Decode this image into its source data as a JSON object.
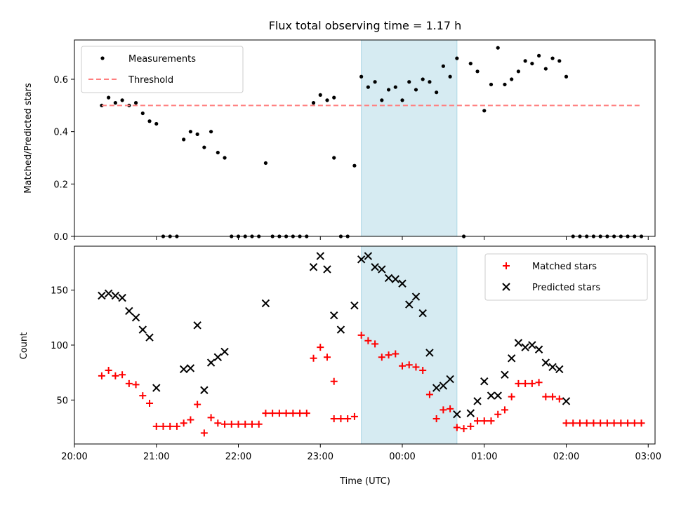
{
  "chart_data": [
    {
      "type": "scatter",
      "title": "Flux total observing time = 1.17 h",
      "xlabel": "",
      "ylabel": "Matched/Predicted stars",
      "xlim": [
        "20:00",
        "03:05"
      ],
      "ylim": [
        0,
        0.75
      ],
      "yticks": [
        "0.0",
        "0.2",
        "0.4",
        "0.6"
      ],
      "shaded_span": [
        "23:30",
        "00:40"
      ],
      "legend_position": "upper left",
      "series": [
        {
          "name": "Measurements",
          "marker": "dot",
          "color": "#000000",
          "points": [
            [
              "20:20",
              0.5
            ],
            [
              "20:25",
              0.53
            ],
            [
              "20:30",
              0.51
            ],
            [
              "20:35",
              0.52
            ],
            [
              "20:40",
              0.5
            ],
            [
              "20:45",
              0.51
            ],
            [
              "20:50",
              0.47
            ],
            [
              "20:55",
              0.44
            ],
            [
              "21:00",
              0.43
            ],
            [
              "21:05",
              0.0
            ],
            [
              "21:10",
              0.0
            ],
            [
              "21:15",
              0.0
            ],
            [
              "21:20",
              0.37
            ],
            [
              "21:25",
              0.4
            ],
            [
              "21:30",
              0.39
            ],
            [
              "21:35",
              0.34
            ],
            [
              "21:40",
              0.4
            ],
            [
              "21:45",
              0.32
            ],
            [
              "21:50",
              0.3
            ],
            [
              "21:55",
              0.0
            ],
            [
              "22:00",
              0.0
            ],
            [
              "22:05",
              0.0
            ],
            [
              "22:10",
              0.0
            ],
            [
              "22:15",
              0.0
            ],
            [
              "22:20",
              0.28
            ],
            [
              "22:25",
              0.0
            ],
            [
              "22:30",
              0.0
            ],
            [
              "22:35",
              0.0
            ],
            [
              "22:40",
              0.0
            ],
            [
              "22:45",
              0.0
            ],
            [
              "22:50",
              0.0
            ],
            [
              "22:55",
              0.51
            ],
            [
              "23:00",
              0.54
            ],
            [
              "23:05",
              0.52
            ],
            [
              "23:10",
              0.53
            ],
            [
              "23:10",
              0.3
            ],
            [
              "23:15",
              0.0
            ],
            [
              "23:20",
              0.0
            ],
            [
              "23:25",
              0.27
            ],
            [
              "23:30",
              0.61
            ],
            [
              "23:35",
              0.57
            ],
            [
              "23:40",
              0.59
            ],
            [
              "23:45",
              0.52
            ],
            [
              "23:50",
              0.56
            ],
            [
              "23:55",
              0.57
            ],
            [
              "00:00",
              0.52
            ],
            [
              "00:05",
              0.59
            ],
            [
              "00:10",
              0.56
            ],
            [
              "00:15",
              0.6
            ],
            [
              "00:20",
              0.59
            ],
            [
              "00:25",
              0.55
            ],
            [
              "00:30",
              0.65
            ],
            [
              "00:35",
              0.61
            ],
            [
              "00:40",
              0.68
            ],
            [
              "00:45",
              0.0
            ],
            [
              "00:50",
              0.66
            ],
            [
              "00:55",
              0.63
            ],
            [
              "01:00",
              0.48
            ],
            [
              "01:05",
              0.58
            ],
            [
              "01:10",
              0.72
            ],
            [
              "01:15",
              0.58
            ],
            [
              "01:20",
              0.6
            ],
            [
              "01:25",
              0.63
            ],
            [
              "01:30",
              0.67
            ],
            [
              "01:35",
              0.66
            ],
            [
              "01:40",
              0.69
            ],
            [
              "01:45",
              0.64
            ],
            [
              "01:50",
              0.68
            ],
            [
              "01:55",
              0.67
            ],
            [
              "02:00",
              0.61
            ],
            [
              "02:05",
              0.0
            ],
            [
              "02:10",
              0.0
            ],
            [
              "02:15",
              0.0
            ],
            [
              "02:20",
              0.0
            ],
            [
              "02:25",
              0.0
            ],
            [
              "02:30",
              0.0
            ],
            [
              "02:35",
              0.0
            ],
            [
              "02:40",
              0.0
            ],
            [
              "02:45",
              0.0
            ],
            [
              "02:50",
              0.0
            ],
            [
              "02:55",
              0.0
            ]
          ]
        },
        {
          "name": "Threshold",
          "marker": "dashed-line",
          "color": "#ff7f7f",
          "points": [
            [
              "20:20",
              0.5
            ],
            [
              "02:55",
              0.5
            ]
          ]
        }
      ]
    },
    {
      "type": "scatter",
      "title": "",
      "xlabel": "Time (UTC)",
      "ylabel": "Count",
      "xlim": [
        "20:00",
        "03:05"
      ],
      "ylim": [
        10,
        190
      ],
      "xticks": [
        "20:00",
        "21:00",
        "22:00",
        "23:00",
        "00:00",
        "01:00",
        "02:00",
        "03:00"
      ],
      "yticks": [
        "50",
        "100",
        "150"
      ],
      "shaded_span": [
        "23:30",
        "00:40"
      ],
      "legend_position": "upper right",
      "series": [
        {
          "name": "Matched stars",
          "marker": "plus",
          "color": "#ff0000",
          "points": [
            [
              "20:20",
              72
            ],
            [
              "20:25",
              77
            ],
            [
              "20:30",
              72
            ],
            [
              "20:35",
              73
            ],
            [
              "20:40",
              65
            ],
            [
              "20:45",
              64
            ],
            [
              "20:50",
              54
            ],
            [
              "20:55",
              47
            ],
            [
              "21:00",
              26
            ],
            [
              "21:05",
              26
            ],
            [
              "21:10",
              26
            ],
            [
              "21:15",
              26
            ],
            [
              "21:20",
              29
            ],
            [
              "21:25",
              32
            ],
            [
              "21:30",
              46
            ],
            [
              "21:35",
              20
            ],
            [
              "21:40",
              34
            ],
            [
              "21:45",
              29
            ],
            [
              "21:50",
              28
            ],
            [
              "21:55",
              28
            ],
            [
              "22:00",
              28
            ],
            [
              "22:05",
              28
            ],
            [
              "22:10",
              28
            ],
            [
              "22:15",
              28
            ],
            [
              "22:20",
              38
            ],
            [
              "22:25",
              38
            ],
            [
              "22:30",
              38
            ],
            [
              "22:35",
              38
            ],
            [
              "22:40",
              38
            ],
            [
              "22:45",
              38
            ],
            [
              "22:50",
              38
            ],
            [
              "22:55",
              88
            ],
            [
              "23:00",
              98
            ],
            [
              "23:05",
              89
            ],
            [
              "23:10",
              67
            ],
            [
              "23:10",
              33
            ],
            [
              "23:15",
              33
            ],
            [
              "23:20",
              33
            ],
            [
              "23:25",
              35
            ],
            [
              "23:30",
              109
            ],
            [
              "23:35",
              104
            ],
            [
              "23:40",
              101
            ],
            [
              "23:45",
              89
            ],
            [
              "23:50",
              91
            ],
            [
              "23:55",
              92
            ],
            [
              "00:00",
              81
            ],
            [
              "00:05",
              82
            ],
            [
              "00:10",
              80
            ],
            [
              "00:15",
              77
            ],
            [
              "00:20",
              55
            ],
            [
              "00:25",
              33
            ],
            [
              "00:30",
              41
            ],
            [
              "00:35",
              42
            ],
            [
              "00:40",
              25
            ],
            [
              "00:45",
              24
            ],
            [
              "00:50",
              26
            ],
            [
              "00:55",
              31
            ],
            [
              "01:00",
              31
            ],
            [
              "01:05",
              31
            ],
            [
              "01:10",
              37
            ],
            [
              "01:15",
              41
            ],
            [
              "01:20",
              53
            ],
            [
              "01:25",
              65
            ],
            [
              "01:30",
              65
            ],
            [
              "01:35",
              65
            ],
            [
              "01:40",
              66
            ],
            [
              "01:45",
              53
            ],
            [
              "01:50",
              53
            ],
            [
              "01:55",
              51
            ],
            [
              "02:00",
              29
            ],
            [
              "02:05",
              29
            ],
            [
              "02:10",
              29
            ],
            [
              "02:15",
              29
            ],
            [
              "02:20",
              29
            ],
            [
              "02:25",
              29
            ],
            [
              "02:30",
              29
            ],
            [
              "02:35",
              29
            ],
            [
              "02:40",
              29
            ],
            [
              "02:45",
              29
            ],
            [
              "02:50",
              29
            ],
            [
              "02:55",
              29
            ]
          ]
        },
        {
          "name": "Predicted stars",
          "marker": "x",
          "color": "#000000",
          "points": [
            [
              "20:20",
              145
            ],
            [
              "20:25",
              147
            ],
            [
              "20:30",
              145
            ],
            [
              "20:35",
              143
            ],
            [
              "20:40",
              131
            ],
            [
              "20:45",
              125
            ],
            [
              "20:50",
              114
            ],
            [
              "20:55",
              107
            ],
            [
              "21:00",
              61
            ],
            [
              "21:20",
              78
            ],
            [
              "21:25",
              79
            ],
            [
              "21:30",
              118
            ],
            [
              "21:35",
              59
            ],
            [
              "21:40",
              84
            ],
            [
              "21:45",
              89
            ],
            [
              "21:50",
              94
            ],
            [
              "22:20",
              138
            ],
            [
              "22:55",
              171
            ],
            [
              "23:00",
              181
            ],
            [
              "23:05",
              169
            ],
            [
              "23:10",
              127
            ],
            [
              "23:15",
              114
            ],
            [
              "23:25",
              136
            ],
            [
              "23:30",
              178
            ],
            [
              "23:35",
              181
            ],
            [
              "23:40",
              171
            ],
            [
              "23:45",
              169
            ],
            [
              "23:50",
              161
            ],
            [
              "23:55",
              160
            ],
            [
              "00:00",
              156
            ],
            [
              "00:05",
              137
            ],
            [
              "00:10",
              144
            ],
            [
              "00:15",
              129
            ],
            [
              "00:20",
              93
            ],
            [
              "00:25",
              61
            ],
            [
              "00:30",
              63
            ],
            [
              "00:35",
              69
            ],
            [
              "00:40",
              37
            ],
            [
              "00:50",
              38
            ],
            [
              "00:55",
              49
            ],
            [
              "01:00",
              67
            ],
            [
              "01:05",
              54
            ],
            [
              "01:10",
              54
            ],
            [
              "01:15",
              73
            ],
            [
              "01:20",
              88
            ],
            [
              "01:25",
              102
            ],
            [
              "01:30",
              98
            ],
            [
              "01:35",
              100
            ],
            [
              "01:40",
              96
            ],
            [
              "01:45",
              84
            ],
            [
              "01:50",
              80
            ],
            [
              "01:55",
              78
            ],
            [
              "02:00",
              49
            ]
          ]
        }
      ]
    }
  ]
}
